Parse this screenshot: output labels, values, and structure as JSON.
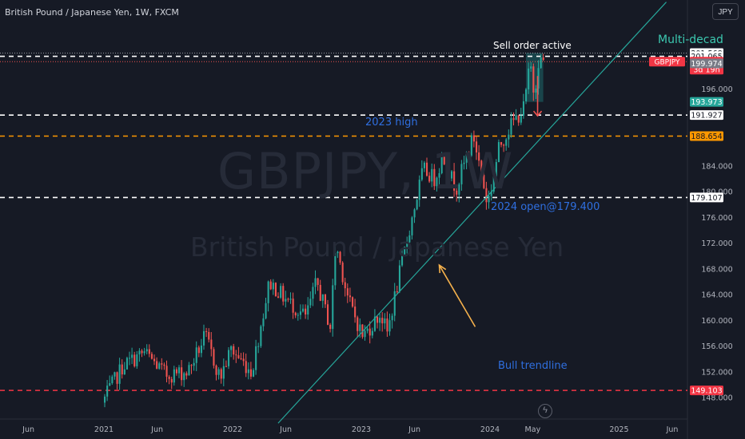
{
  "header": {
    "symbol_title": "British Pound / Japanese Yen, 1W, FXCM",
    "currency_button": "JPY"
  },
  "watermark": {
    "symbol": "GBPJPY, 1W",
    "name": "British Pound / Japanese Yen"
  },
  "annotations": {
    "sell_order": "Sell order active",
    "multi_decade": "Multi-decad",
    "high_2023": "2023 high",
    "open_2024": "2024 open@179.400",
    "bull_trendline": "Bull trendline"
  },
  "colors": {
    "background": "#161a25",
    "bull": "#26a69a",
    "bear": "#ef5350",
    "trendline": "#26a69a",
    "arrow": "#f5b14c",
    "level_white": "#ffffff",
    "level_orange": "#ff9800",
    "level_red": "#f23645",
    "sell_zone": "#1c5a5f"
  },
  "icons": {
    "tradingview_logo": "tradingview-logo-icon"
  },
  "chart_data": {
    "type": "candlestick",
    "symbol": "GBPJPY",
    "timeframe": "1W",
    "ylim": [
      146.5,
      205.0
    ],
    "y_ticks": [
      148.0,
      152.0,
      156.0,
      160.0,
      164.0,
      168.0,
      172.0,
      176.0,
      180.0,
      184.0,
      196.0
    ],
    "x_ticks": [
      "Jun",
      "2021",
      "Jun",
      "2022",
      "Jun",
      "2023",
      "Jun",
      "2024",
      "May",
      "2025",
      "Jun"
    ],
    "price_path": [
      [
        "2021-01-01",
        147.2
      ],
      [
        "2021-03-01",
        153.0
      ],
      [
        "2021-05-01",
        155.0
      ],
      [
        "2021-07-01",
        151.5
      ],
      [
        "2021-09-01",
        152.0
      ],
      [
        "2021-10-20",
        157.6
      ],
      [
        "2021-12-01",
        151.0
      ],
      [
        "2022-01-01",
        155.5
      ],
      [
        "2022-03-01",
        152.0
      ],
      [
        "2022-04-20",
        166.0
      ],
      [
        "2022-06-01",
        163.5
      ],
      [
        "2022-08-01",
        160.5
      ],
      [
        "2022-09-01",
        166.0
      ],
      [
        "2022-10-10",
        159.0
      ],
      [
        "2022-10-25",
        172.0
      ],
      [
        "2022-12-01",
        163.0
      ],
      [
        "2023-01-10",
        157.5
      ],
      [
        "2023-03-01",
        161.0
      ],
      [
        "2023-03-20",
        158.0
      ],
      [
        "2023-05-01",
        169.0
      ],
      [
        "2023-06-30",
        183.5
      ],
      [
        "2023-08-01",
        182.0
      ],
      [
        "2023-08-25",
        185.5
      ],
      [
        "2023-10-01",
        180.5
      ],
      [
        "2023-11-20",
        188.6
      ],
      [
        "2023-12-28",
        178.5
      ],
      [
        "2024-01-05",
        179.4
      ],
      [
        "2024-02-01",
        187.0
      ],
      [
        "2024-03-01",
        190.0
      ],
      [
        "2024-04-10",
        193.0
      ],
      [
        "2024-04-29",
        200.0
      ],
      [
        "2024-05-10",
        195.0
      ],
      [
        "2024-05-22",
        200.5
      ],
      [
        "2024-05-31",
        200.2
      ]
    ],
    "levels": [
      {
        "price": 201.065,
        "style": "white-dashed",
        "label": "201.065"
      },
      {
        "price": 191.927,
        "style": "white-dashed",
        "label": "191.927"
      },
      {
        "price": 188.654,
        "style": "orange-dashed",
        "label": "188.654"
      },
      {
        "price": 179.107,
        "style": "white-dashed",
        "label": "179.107"
      },
      {
        "price": 149.103,
        "style": "red-dashed",
        "label": "149.103"
      }
    ],
    "price_tags": [
      {
        "price": 201.568,
        "label": "201.568",
        "bg": "#ffffff",
        "fg": "#131722"
      },
      {
        "price": 201.065,
        "label": "201.065",
        "bg": "#ffffff",
        "fg": "#131722"
      },
      {
        "price": 200.238,
        "label": "200.238",
        "sub": "3d 19h",
        "bg": "#f23645",
        "fg": "#ffffff",
        "symbol_label": "GBPJPY"
      },
      {
        "price": 199.974,
        "label": "199.974",
        "bg": "#787b86",
        "fg": "#ffffff"
      },
      {
        "price": 193.973,
        "label": "193.973",
        "bg": "#26a69a",
        "fg": "#ffffff"
      },
      {
        "price": 191.927,
        "label": "191.927",
        "bg": "#ffffff",
        "fg": "#131722"
      },
      {
        "price": 188.654,
        "label": "188.654",
        "bg": "#ff9800",
        "fg": "#131722"
      },
      {
        "price": 179.107,
        "label": "179.107",
        "bg": "#ffffff",
        "fg": "#131722"
      },
      {
        "price": 149.103,
        "label": "149.103",
        "bg": "#f23645",
        "fg": "#ffffff"
      }
    ],
    "trendline": [
      [
        "2022-05-10",
        144.0
      ],
      [
        "2025-05-15",
        209.5
      ]
    ],
    "sell_zone": {
      "from": "2024-04-12",
      "to": "2024-05-31",
      "low": 193.973,
      "high": 201.568
    },
    "sell_arrow": {
      "date": "2024-05-15",
      "from": 198.0,
      "to": 191.8
    },
    "trendline_arrow": {
      "from": [
        "2023-11-20",
        159.0
      ],
      "to": [
        "2023-08-10",
        168.6
      ]
    }
  }
}
